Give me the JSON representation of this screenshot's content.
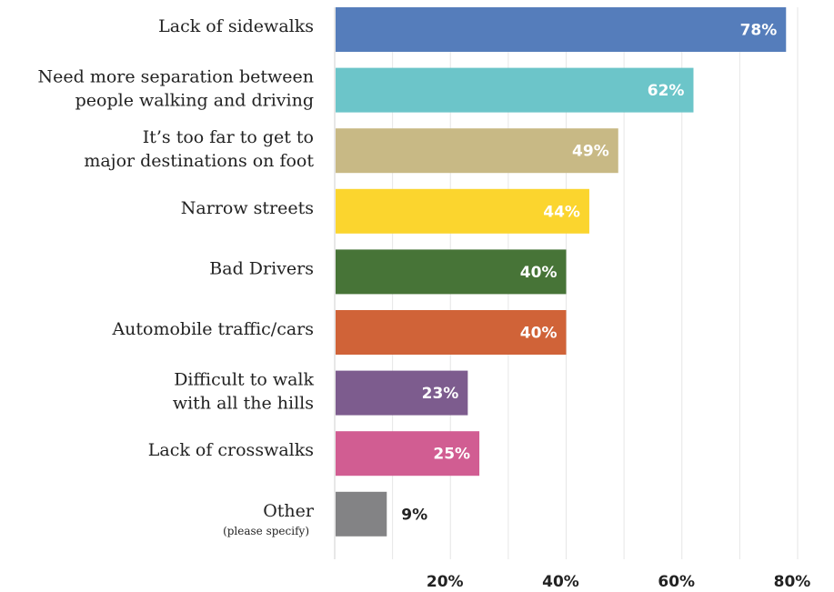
{
  "chart_data": {
    "type": "bar",
    "orientation": "horizontal",
    "categories": [
      {
        "lines": [
          "Lack of sidewalks"
        ],
        "sub": ""
      },
      {
        "lines": [
          "Need more separation between",
          "people walking and driving"
        ],
        "sub": ""
      },
      {
        "lines": [
          "It’s too far to get to",
          "major destinations on foot"
        ],
        "sub": ""
      },
      {
        "lines": [
          "Narrow streets"
        ],
        "sub": ""
      },
      {
        "lines": [
          "Bad Drivers"
        ],
        "sub": ""
      },
      {
        "lines": [
          "Automobile traffic/cars"
        ],
        "sub": ""
      },
      {
        "lines": [
          "Difficult to walk",
          "with all the hills"
        ],
        "sub": ""
      },
      {
        "lines": [
          "Lack of crosswalks"
        ],
        "sub": ""
      },
      {
        "lines": [
          "Other"
        ],
        "sub": "(please specify)"
      }
    ],
    "values": [
      78,
      62,
      49,
      44,
      40,
      40,
      23,
      25,
      9
    ],
    "value_labels": [
      "78%",
      "62%",
      "49%",
      "44%",
      "40%",
      "40%",
      "23%",
      "25%",
      "9%"
    ],
    "colors": [
      "#557dbb",
      "#6cc5c9",
      "#c8b985",
      "#fbd52e",
      "#477437",
      "#d06338",
      "#7d5c8e",
      "#d15d92",
      "#838385"
    ],
    "label_colors": [
      "#ffffff",
      "#ffffff",
      "#ffffff",
      "#ffffff",
      "#ffffff",
      "#ffffff",
      "#ffffff",
      "#ffffff",
      "#222222"
    ],
    "xlim": [
      0,
      80
    ],
    "xticks": [
      20,
      40,
      60,
      80
    ],
    "xtick_labels": [
      "20%",
      "40%",
      "60%",
      "80%"
    ],
    "gridlines": [
      10,
      20,
      30,
      40,
      50,
      60,
      70,
      80
    ],
    "grid": true,
    "legend": "none",
    "title": "",
    "xlabel": "",
    "ylabel": ""
  }
}
